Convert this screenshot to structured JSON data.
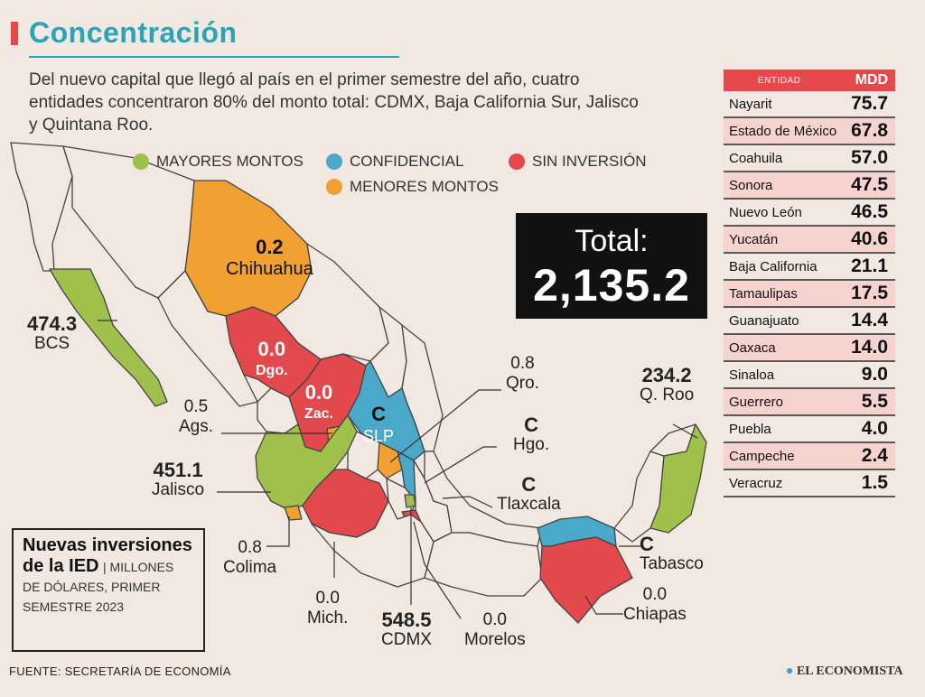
{
  "header": {
    "title": "Concentración",
    "subtitle": "Del nuevo capital que llegó al país en el primer semestre del año, cuatro entidades concentraron 80% del monto total: CDMX, Baja California Sur, Jalisco y Quintana Roo."
  },
  "legend": [
    {
      "label": "MAYORES MONTOS",
      "color": "#9fc04a"
    },
    {
      "label": "CONFIDENCIAL",
      "color": "#4aa9c8"
    },
    {
      "label": "SIN INVERSIÓN",
      "color": "#e2484c"
    },
    {
      "label": "MENORES MONTOS",
      "color": "#f0a131"
    }
  ],
  "total": {
    "label": "Total:",
    "value": "2,135.2"
  },
  "table": {
    "col_entity": "ENTIDAD",
    "col_value": "MDD",
    "rows": [
      {
        "name": "Nayarit",
        "value": "75.7"
      },
      {
        "name": "Estado de México",
        "value": "67.8"
      },
      {
        "name": "Coahuila",
        "value": "57.0"
      },
      {
        "name": "Sonora",
        "value": "47.5"
      },
      {
        "name": "Nuevo León",
        "value": "46.5"
      },
      {
        "name": "Yucatán",
        "value": "40.6"
      },
      {
        "name": "Baja California",
        "value": "21.1"
      },
      {
        "name": "Tamaulipas",
        "value": "17.5"
      },
      {
        "name": "Guanajuato",
        "value": "14.4"
      },
      {
        "name": "Oaxaca",
        "value": "14.0"
      },
      {
        "name": "Sinaloa",
        "value": "9.0"
      },
      {
        "name": "Guerrero",
        "value": "5.5"
      },
      {
        "name": "Puebla",
        "value": "4.0"
      },
      {
        "name": "Campeche",
        "value": "2.4"
      },
      {
        "name": "Veracruz",
        "value": "1.5"
      }
    ]
  },
  "map_labels": {
    "chihuahua": {
      "value": "0.2",
      "name": "Chihuahua"
    },
    "bcs": {
      "value": "474.3",
      "name": "BCS"
    },
    "dgo": {
      "value": "0.0",
      "name": "Dgo."
    },
    "zac": {
      "value": "0.0",
      "name": "Zac."
    },
    "slp": {
      "value": "C",
      "name": "SLP"
    },
    "ags": {
      "value": "0.5",
      "name": "Ags."
    },
    "jalisco": {
      "value": "451.1",
      "name": "Jalisco"
    },
    "colima": {
      "value": "0.8",
      "name": "Colima"
    },
    "mich": {
      "value": "0.0",
      "name": "Mich."
    },
    "cdmx": {
      "value": "548.5",
      "name": "CDMX"
    },
    "morelos": {
      "value": "0.0",
      "name": "Morelos"
    },
    "qro": {
      "value": "0.8",
      "name": "Qro."
    },
    "hgo": {
      "value": "C",
      "name": "Hgo."
    },
    "tlaxcala": {
      "value": "C",
      "name": "Tlaxcala"
    },
    "tabasco": {
      "value": "C",
      "name": "Tabasco"
    },
    "chiapas": {
      "value": "0.0",
      "name": "Chiapas"
    },
    "qroo": {
      "value": "234.2",
      "name": "Q. Roo"
    }
  },
  "note": {
    "title": "Nuevas inversiones de la IED",
    "units": "| MILLONES DE DÓLARES, PRIMER SEMESTRE 2023"
  },
  "footer": {
    "source": "FUENTE: SECRETARÍA DE ECONOMÍA",
    "brand": "EL ECONOMISTA"
  }
}
